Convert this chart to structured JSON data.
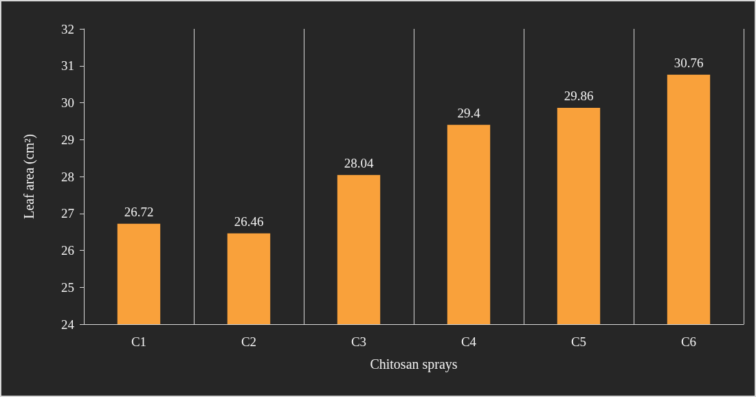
{
  "chart_data": {
    "type": "bar",
    "xlabel": "Chitosan sprays",
    "ylabel": "Leaf area (cm²)",
    "categories": [
      "C1",
      "C2",
      "C3",
      "C4",
      "C5",
      "C6"
    ],
    "values": [
      26.72,
      26.46,
      28.04,
      29.4,
      29.86,
      30.76
    ],
    "color": "#f9a13b",
    "ylim": [
      24,
      32
    ],
    "yticks": [
      24,
      25,
      26,
      27,
      28,
      29,
      30,
      31,
      32
    ],
    "grid": "x",
    "data_labels": true
  }
}
